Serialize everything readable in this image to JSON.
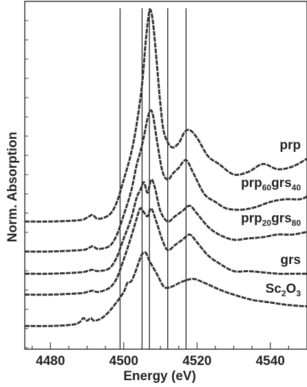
{
  "chart_data": {
    "type": "line",
    "title": "",
    "xlabel": "Energy (eV)",
    "ylabel": "Norm. Absorption",
    "xlim": [
      4473,
      4550
    ],
    "xticks": [
      4480,
      4500,
      4520,
      4540
    ],
    "vertical_lines": [
      4499,
      4505,
      4507,
      4512,
      4517
    ],
    "grid": false,
    "legend": "none",
    "line_color": "#333333",
    "series": [
      {
        "label_parts": [
          {
            "text": "prp",
            "sub": false
          }
        ],
        "offset": 0.82,
        "x": [
          4473,
          4480,
          4488,
          4490,
          4491.5,
          4493,
          4496,
          4498,
          4500,
          4502,
          4503.5,
          4505,
          4506,
          4506.8,
          4507.3,
          4508,
          4509,
          4510,
          4511,
          4513,
          4515,
          4516.5,
          4518,
          4520,
          4523,
          4526,
          4530,
          4534,
          4538,
          4542,
          4546,
          4550
        ],
        "y": [
          0.0,
          0.0,
          0.01,
          0.03,
          0.05,
          0.02,
          0.05,
          0.14,
          0.32,
          0.52,
          0.74,
          1.05,
          1.38,
          1.58,
          1.62,
          1.52,
          1.22,
          0.9,
          0.68,
          0.57,
          0.6,
          0.68,
          0.7,
          0.64,
          0.5,
          0.44,
          0.36,
          0.38,
          0.44,
          0.4,
          0.42,
          0.48
        ]
      },
      {
        "label_parts": [
          {
            "text": "prp",
            "sub": false
          },
          {
            "text": "60",
            "sub": true
          },
          {
            "text": "grs",
            "sub": false
          },
          {
            "text": "40",
            "sub": true
          }
        ],
        "offset": 0.59,
        "x": [
          4473,
          4480,
          4488,
          4490,
          4491.5,
          4493,
          4496,
          4498,
          4500,
          4502,
          4503.5,
          4504.5,
          4505.5,
          4506.5,
          4507.3,
          4508,
          4509,
          4510.5,
          4512,
          4513.5,
          4515,
          4517,
          4519,
          4522,
          4525,
          4528,
          4532,
          4536,
          4540,
          4544,
          4548,
          4550
        ],
        "y": [
          0.0,
          0.0,
          0.01,
          0.02,
          0.04,
          0.02,
          0.04,
          0.12,
          0.28,
          0.46,
          0.66,
          0.76,
          0.88,
          1.02,
          1.08,
          1.04,
          0.86,
          0.62,
          0.55,
          0.6,
          0.64,
          0.7,
          0.6,
          0.44,
          0.38,
          0.33,
          0.32,
          0.34,
          0.38,
          0.4,
          0.4,
          0.42
        ]
      },
      {
        "label_parts": [
          {
            "text": "prp",
            "sub": false
          },
          {
            "text": "20",
            "sub": true
          },
          {
            "text": "grs",
            "sub": false
          },
          {
            "text": "80",
            "sub": true
          }
        ],
        "offset": 0.42,
        "x": [
          4473,
          4480,
          4488,
          4490,
          4491.5,
          4493,
          4496,
          4498,
          4500,
          4502,
          4503.5,
          4504.5,
          4505.5,
          4506.5,
          4507.5,
          4508.5,
          4510,
          4512,
          4514,
          4516,
          4518,
          4520,
          4523,
          4526,
          4530,
          4534,
          4538,
          4542,
          4546,
          4550
        ],
        "y": [
          0.0,
          0.0,
          0.01,
          0.02,
          0.03,
          0.02,
          0.04,
          0.12,
          0.27,
          0.42,
          0.58,
          0.64,
          0.7,
          0.62,
          0.72,
          0.66,
          0.48,
          0.4,
          0.44,
          0.48,
          0.52,
          0.46,
          0.36,
          0.3,
          0.26,
          0.27,
          0.28,
          0.3,
          0.3,
          0.32
        ]
      },
      {
        "label_parts": [
          {
            "text": "grs",
            "sub": false
          }
        ],
        "offset": 0.26,
        "x": [
          4473,
          4480,
          4488,
          4490,
          4491.5,
          4493,
          4496,
          4498,
          4500,
          4502,
          4503.5,
          4504.5,
          4505.5,
          4506.5,
          4507.5,
          4509,
          4510.5,
          4512,
          4514,
          4516,
          4518,
          4520,
          4523,
          4526,
          4530,
          4534,
          4538,
          4542,
          4546,
          4550
        ],
        "y": [
          0.0,
          0.0,
          0.01,
          0.02,
          0.03,
          0.02,
          0.05,
          0.12,
          0.27,
          0.44,
          0.58,
          0.66,
          0.63,
          0.6,
          0.66,
          0.55,
          0.42,
          0.34,
          0.38,
          0.42,
          0.46,
          0.4,
          0.3,
          0.24,
          0.18,
          0.18,
          0.17,
          0.16,
          0.16,
          0.16
        ]
      },
      {
        "label_parts": [
          {
            "text": "Sc",
            "sub": false
          },
          {
            "text": "2",
            "sub": true
          },
          {
            "text": "O",
            "sub": false
          },
          {
            "text": "3",
            "sub": true
          }
        ],
        "offset": 0.02,
        "x": [
          4473,
          4480,
          4486,
          4488,
          4489,
          4490,
          4491,
          4492,
          4494,
          4496,
          4498,
          4500,
          4501,
          4502,
          4503,
          4504,
          4505,
          4506,
          4507,
          4509,
          4511,
          4513,
          4516,
          4519,
          4522,
          4526,
          4530,
          4535,
          4540,
          4545,
          4550
        ],
        "y": [
          0.0,
          0.0,
          0.01,
          0.03,
          0.06,
          0.04,
          0.06,
          0.04,
          0.06,
          0.11,
          0.18,
          0.26,
          0.33,
          0.34,
          0.4,
          0.48,
          0.55,
          0.56,
          0.5,
          0.4,
          0.3,
          0.3,
          0.34,
          0.36,
          0.33,
          0.28,
          0.24,
          0.2,
          0.18,
          0.16,
          0.15
        ]
      }
    ]
  }
}
